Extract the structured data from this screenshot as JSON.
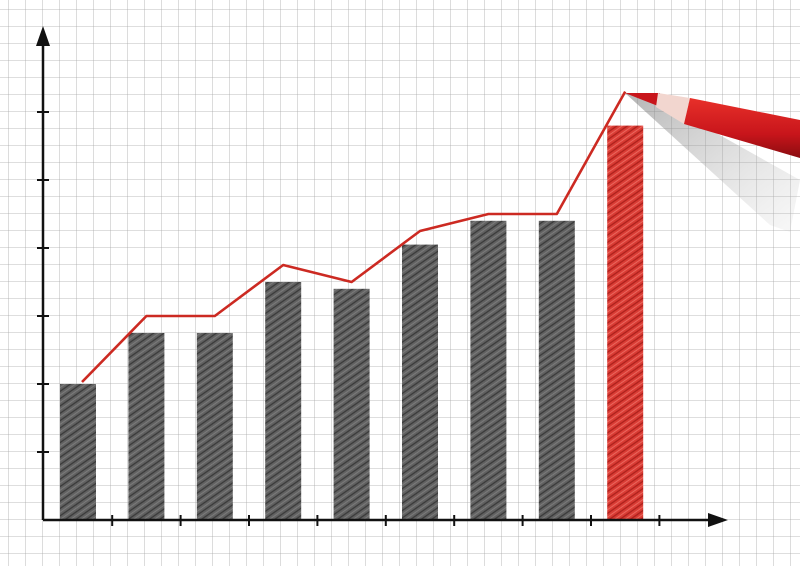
{
  "chart_data": {
    "type": "bar",
    "title": "",
    "xlabel": "",
    "ylabel": "",
    "categories": [
      "",
      "",
      "",
      "",
      "",
      "",
      "",
      "",
      ""
    ],
    "values": [
      2.0,
      2.75,
      2.75,
      3.5,
      3.4,
      4.05,
      4.4,
      4.4,
      5.8
    ],
    "ylim": [
      0,
      7
    ],
    "y_ticks": [
      1,
      2,
      3,
      4,
      5,
      6
    ],
    "grid": true,
    "legend": "none",
    "highlight_index": 8,
    "trend_line": {
      "type": "line",
      "values": [
        2.0,
        3.0,
        3.0,
        3.75,
        3.5,
        4.25,
        4.5,
        4.5,
        6.3
      ]
    },
    "colors": {
      "bar": "#4a4a4a",
      "highlight_bar": "#d3241c",
      "trend_line": "#cc2a22",
      "grid": "#9a9a9a",
      "axis": "#111111",
      "pencil": "#c8151b"
    },
    "decoration": "red-pencil-icon"
  }
}
